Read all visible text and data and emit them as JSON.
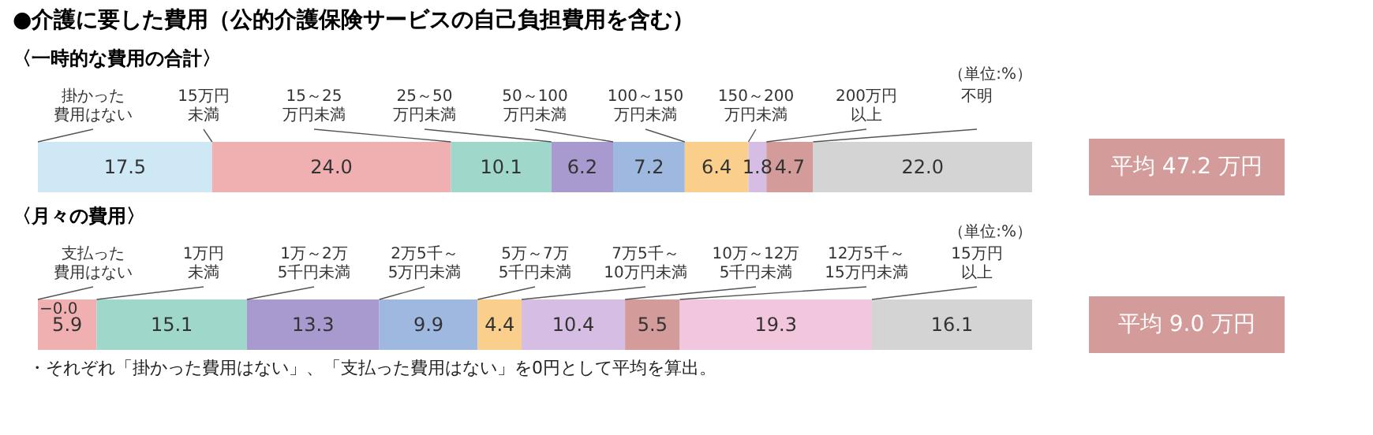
{
  "chart_data": [
    {
      "type": "bar",
      "orientation": "horizontal",
      "stacked": true,
      "title": "●介護に要した費用（公的介護保険サービスの自己負担費用を含む）",
      "subtitle": "〈一時的な費用の合計〉",
      "categories": [
        null
      ],
      "series": [
        {
          "name": "掛かった費用はない",
          "color": "#cfe8f5",
          "values": [
            17.5
          ],
          "value_labels": [
            "17.5"
          ]
        },
        {
          "name": "15万円未満",
          "color": "#f0afb1",
          "values": [
            24.0
          ],
          "value_labels": [
            "24.0"
          ]
        },
        {
          "name": "15～25万円未満",
          "color": "#9fd8cb",
          "values": [
            10.1
          ],
          "value_labels": [
            "10.1"
          ]
        },
        {
          "name": "25～50万円未満",
          "color": "#a899cf",
          "values": [
            6.2
          ],
          "value_labels": [
            "6.2"
          ]
        },
        {
          "name": "50～100万円未満",
          "color": "#9fb8e0",
          "values": [
            7.2
          ],
          "value_labels": [
            "7.2"
          ]
        },
        {
          "name": "100～150万円未満",
          "color": "#f9cf8b",
          "values": [
            6.4
          ],
          "value_labels": [
            "6.4"
          ]
        },
        {
          "name": "150～200万円未満",
          "color": "#d6bde3",
          "values": [
            1.8
          ],
          "value_labels": [
            "1.8"
          ]
        },
        {
          "name": "200万円以上",
          "color": "#d39b99",
          "values": [
            4.7
          ],
          "value_labels": [
            "4.7"
          ]
        },
        {
          "name": "不明",
          "color": "#d4d4d4",
          "values": [
            22.0
          ],
          "value_labels": [
            "22.0"
          ]
        }
      ],
      "annotations": [
        "（単位:%）",
        "平均 47.2 万円"
      ]
    },
    {
      "type": "bar",
      "orientation": "horizontal",
      "stacked": true,
      "subtitle": "〈月々の費用〉",
      "categories": [
        null
      ],
      "series": [
        {
          "name": "支払った費用はない",
          "color": "#f0afb1",
          "values": [
            5.9
          ],
          "value_labels": [
            "5.9"
          ]
        },
        {
          "name": "1万円未満",
          "color": "#9fd8cb",
          "values": [
            15.1
          ],
          "value_labels": [
            "15.1"
          ]
        },
        {
          "name": "1万～2万5千円未満",
          "color": "#a899cf",
          "values": [
            13.3
          ],
          "value_labels": [
            "13.3"
          ]
        },
        {
          "name": "2万5千～5万円未満",
          "color": "#9fb8e0",
          "values": [
            9.9
          ],
          "value_labels": [
            "9.9"
          ]
        },
        {
          "name": "5万～7万5千円未満",
          "color": "#f9cf8b",
          "values": [
            4.4
          ],
          "value_labels": [
            "4.4"
          ]
        },
        {
          "name": "7万5千～10万円未満",
          "color": "#d6bde3",
          "values": [
            10.4
          ],
          "value_labels": [
            "10.4"
          ]
        },
        {
          "name": "10万～12万5千円未満",
          "color": "#d39b99",
          "values": [
            5.5
          ],
          "value_labels": [
            "5.5"
          ]
        },
        {
          "name": "12万5千～15万円未満",
          "color": "#f2c6dc",
          "values": [
            19.3
          ],
          "value_labels": [
            "19.3"
          ]
        },
        {
          "name": "15万円以上",
          "color": "#d4d4d4",
          "values": [
            16.1
          ],
          "value_labels": [
            "16.1"
          ]
        }
      ],
      "annotations": [
        "（単位:%）",
        "−0.0",
        "平均 9.0 万円",
        "・それぞれ「掛かった費用はない」、「支払った費用はない」を0円として平均を算出。"
      ]
    }
  ]
}
